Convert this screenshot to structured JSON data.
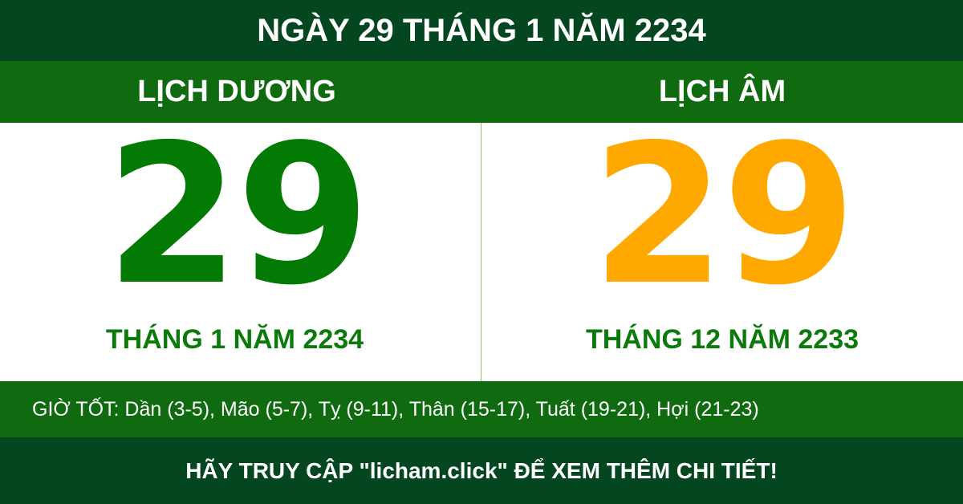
{
  "title": "NGÀY 29 THÁNG 1 NĂM 2234",
  "solar": {
    "heading": "LỊCH DƯƠNG",
    "day": "29",
    "month_year": "THÁNG 1 NĂM 2234",
    "color": "#037a03"
  },
  "lunar": {
    "heading": "LỊCH ÂM",
    "day": "29",
    "month_year": "THÁNG 12 NĂM 2233",
    "color": "#ffa800"
  },
  "good_hours": "GIỜ TỐT: Dần (3-5), Mão (5-7), Tỵ (9-11), Thân (15-17), Tuất (19-21), Hợi (21-23)",
  "footer": "HÃY TRUY CẬP \"licham.click\" ĐỂ XEM THÊM CHI TIẾT!"
}
